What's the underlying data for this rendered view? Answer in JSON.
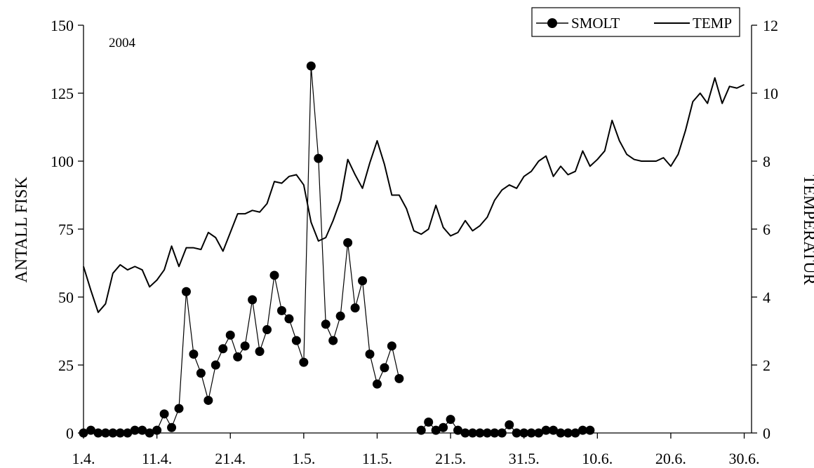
{
  "chart_data": {
    "type": "line",
    "annotation": "2004",
    "legend_position": "top-right",
    "legend": {
      "smolt_label": "SMOLT",
      "temp_label": "TEMP"
    },
    "x_ticks": [
      "1.4.",
      "11.4.",
      "21.4.",
      "1.5.",
      "11.5.",
      "21.5.",
      "31.5.",
      "10.6.",
      "20.6.",
      "30.6."
    ],
    "x_tick_days": [
      0,
      10,
      20,
      30,
      40,
      50,
      60,
      70,
      80,
      90
    ],
    "x_range_days": [
      0,
      91
    ],
    "y_left": {
      "label": "ANTALL FISK",
      "ticks": [
        0,
        25,
        50,
        75,
        100,
        125,
        150
      ],
      "range": [
        0,
        150
      ]
    },
    "y_right": {
      "label": "TEMPERATUR",
      "ticks": [
        0,
        2,
        4,
        6,
        8,
        10,
        12
      ],
      "range": [
        0,
        12
      ]
    },
    "series": [
      {
        "name": "SMOLT",
        "axis": "left",
        "marker": "circle",
        "values": [
          0,
          1,
          0,
          0,
          0,
          0,
          0,
          1,
          1,
          0,
          1,
          7,
          2,
          9,
          52,
          29,
          22,
          12,
          25,
          31,
          36,
          28,
          32,
          49,
          30,
          38,
          58,
          45,
          42,
          34,
          26,
          135,
          101,
          40,
          34,
          43,
          70,
          46,
          56,
          29,
          18,
          24,
          32,
          20,
          null,
          null,
          1,
          4,
          1,
          2,
          5,
          1,
          0,
          0,
          0,
          0,
          0,
          0,
          3,
          0,
          0,
          0,
          0,
          1,
          1,
          0,
          0,
          0,
          1,
          1
        ]
      },
      {
        "name": "TEMP",
        "axis": "right",
        "marker": "none",
        "values": [
          4.9,
          4.2,
          3.55,
          3.8,
          4.7,
          4.95,
          4.8,
          4.9,
          4.8,
          4.3,
          4.5,
          4.8,
          5.5,
          4.9,
          5.45,
          5.45,
          5.4,
          5.9,
          5.75,
          5.35,
          5.9,
          6.45,
          6.45,
          6.55,
          6.5,
          6.75,
          7.4,
          7.35,
          7.55,
          7.6,
          7.3,
          6.2,
          5.65,
          5.75,
          6.25,
          6.85,
          8.05,
          7.6,
          7.2,
          7.95,
          8.6,
          7.9,
          7.0,
          7.0,
          6.6,
          5.95,
          5.85,
          6.0,
          6.7,
          6.05,
          5.8,
          5.9,
          6.25,
          5.95,
          6.1,
          6.35,
          6.85,
          7.15,
          7.3,
          7.2,
          7.55,
          7.7,
          8.0,
          8.15,
          7.55,
          7.85,
          7.6,
          7.7,
          8.3,
          7.85,
          8.05,
          8.3,
          9.2,
          8.6,
          8.2,
          8.05,
          8.0,
          8.0,
          8.0,
          8.1,
          7.85,
          8.2,
          8.9,
          9.75,
          10.0,
          9.7,
          10.45,
          9.7,
          10.2,
          10.15,
          10.25
        ]
      }
    ]
  }
}
